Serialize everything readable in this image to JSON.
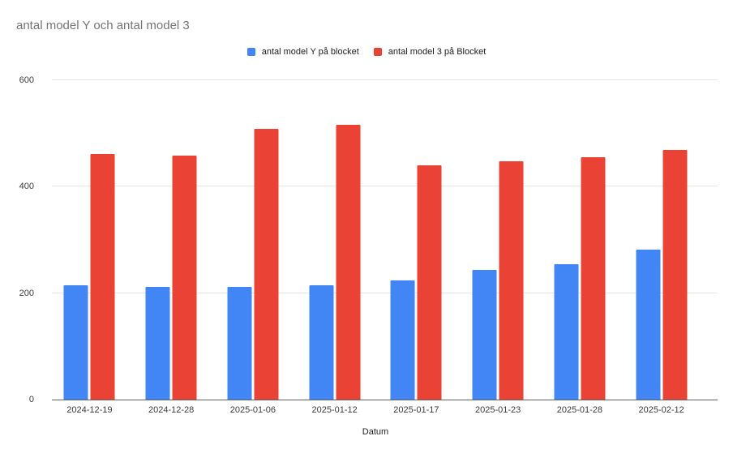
{
  "header": {
    "title": "antal model Y och antal model 3"
  },
  "legend": {
    "items": [
      {
        "label": "antal model Y på blocket",
        "color": "#4285f4"
      },
      {
        "label": "antal model 3 på Blocket",
        "color": "#ea4335"
      }
    ]
  },
  "chart_data": {
    "type": "bar",
    "title": "antal model Y och antal model 3",
    "categories": [
      "2024-12-19",
      "2024-12-28",
      "2025-01-06",
      "2025-01-12",
      "2025-01-17",
      "2025-01-23",
      "2025-01-28",
      "2025-02-12"
    ],
    "series": [
      {
        "name": "antal model Y på blocket",
        "color": "#4285f4",
        "values": [
          215,
          212,
          212,
          215,
          224,
          244,
          255,
          282
        ]
      },
      {
        "name": "antal model 3 på Blocket",
        "color": "#ea4335",
        "values": [
          461,
          459,
          509,
          516,
          440,
          448,
          456,
          469
        ]
      }
    ],
    "xlabel": "Datum",
    "ylabel": "",
    "ylim": [
      0,
      600
    ],
    "y_ticks": [
      0,
      200,
      400,
      600
    ],
    "grid": true,
    "legend_position": "top-center",
    "background": "#ffffff"
  },
  "colors": {
    "title_text": "#757575",
    "axis_text": "#3c3c3c",
    "gridline": "#e6e6e6",
    "baseline": "#616161"
  }
}
